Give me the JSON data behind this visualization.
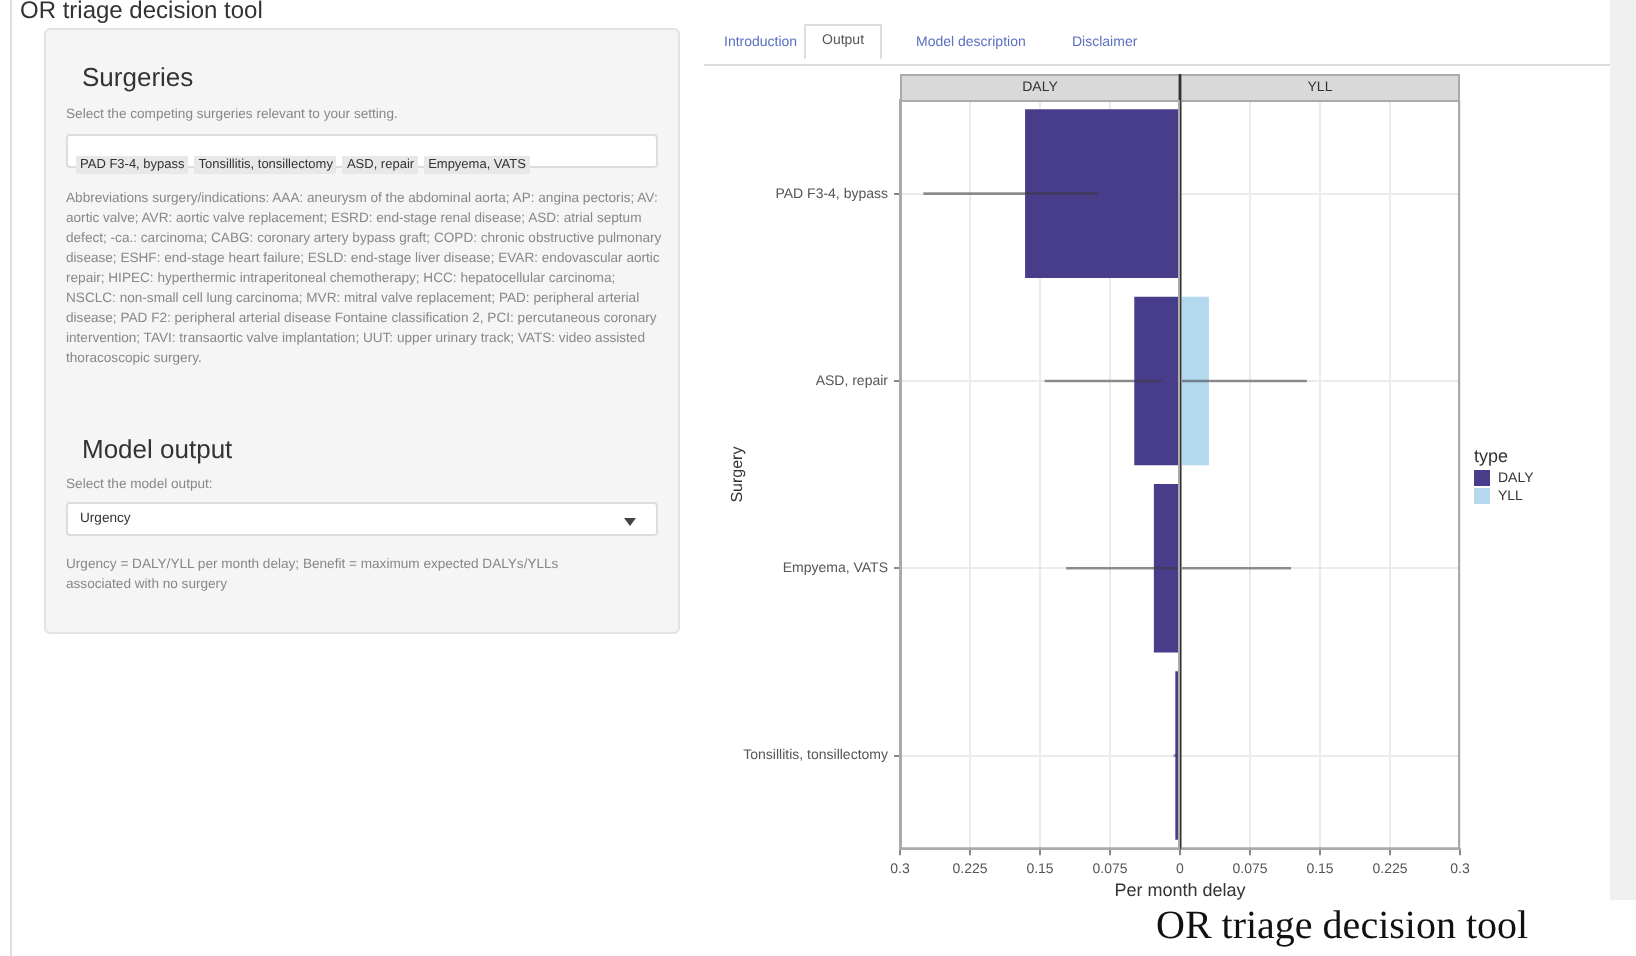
{
  "chart_data": [
    {
      "type": "other",
      "title": "OR triage decision tool",
      "annotations": [
        "Surgeries",
        "Select the competing surgeries relevant to your setting.",
        "PAD F3-4, bypass",
        "Tonsillitis, tonsillectomy",
        "ASD, repair",
        "Empyema, VATS",
        "Abbreviations surgery/indications: AAA: aneurysm of the abdominal aorta; AP: angina pectoris; AV: aortic valve; AVR: aortic valve replacement; ESRD: end-stage renal disease; ASD: atrial septum defect; -ca.: carcinoma; CABG: coronary artery bypass graft; COPD: chronic obstructive pulmonary disease; ESHF: end-stage heart failure; ESLD: end-stage liver disease; EVAR: endovascular aortic repair; HIPEC: hyperthermic intraperitoneal chemotherapy; HCC: hepatocellular carcinoma; NSCLC: non-small cell lung carcinoma; MVR: mitral valve replacement; PAD: peripheral arterial disease; PAD F2: peripheral arterial disease Fontaine classification 2, PCI: percutaneous coronary intervention; TAVI: transaortic valve implantation; UUT: upper urinary track; VATS: video assisted thoracoscopic surgery.",
        "Model output",
        "Select the model output:",
        "Urgency",
        "Urgency = DALY/YLL per month delay; Benefit = maximum expected DALYs/YLLs associated with no surgery",
        "Introduction",
        "Output",
        "Model description",
        "Disclaimer",
        "OR triage decision tool"
      ]
    },
    {
      "type": "bar",
      "orientation": "horizontal",
      "title": "DALY",
      "ylabel": "Surgery",
      "categories": [
        "PAD F3-4, bypass",
        "ASD, repair",
        "Empyema, VATS",
        "Tonsillitis, tonsillectomy"
      ],
      "series": [
        {
          "name": "DALY",
          "color": "#483d8b",
          "values": [
            0.166,
            0.049,
            0.028,
            0.005
          ],
          "errors": [
            [
              0.088,
              0.275
            ],
            [
              0.019,
              0.145
            ],
            [
              0,
              0.122
            ],
            [
              0,
              0.007
            ]
          ]
        }
      ],
      "xlim": [
        0.3,
        0
      ],
      "xticks": [
        0.3,
        0.225,
        0.15,
        0.075,
        0
      ],
      "grid": true,
      "ref_lines": [
        {
          "axis": "x",
          "value": 0,
          "color": "#333333"
        }
      ]
    },
    {
      "type": "bar",
      "orientation": "horizontal",
      "title": "YLL",
      "xlabel": "Per month delay",
      "legend_title": "type",
      "legend": "right",
      "tick_labels": "x",
      "series": [
        {
          "name": "YLL",
          "color": "#b4d8ee",
          "values": [
            null,
            0.031,
            0,
            null
          ],
          "errors": [
            null,
            [
              0,
              0.136
            ],
            [
              0,
              0.119
            ],
            null
          ]
        }
      ],
      "xlim": [
        0,
        0.3
      ],
      "xticks": [
        0.075,
        0.15,
        0.225,
        0.3
      ],
      "grid": true
    }
  ]
}
